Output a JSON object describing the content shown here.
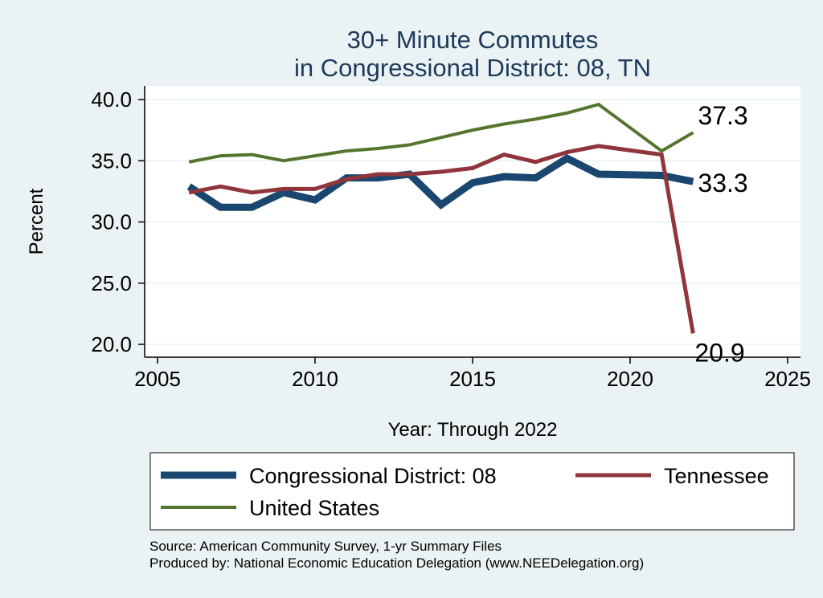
{
  "chart_data": {
    "type": "line",
    "title": [
      "30+ Minute Commutes",
      "in Congressional District:  08, TN"
    ],
    "xlabel": "Year: Through 2022",
    "ylabel": "Percent",
    "xlim": [
      2005,
      2025
    ],
    "ylim": [
      20,
      40
    ],
    "x_ticks": [
      2005,
      2010,
      2015,
      2020,
      2025
    ],
    "y_ticks": [
      "20.0",
      "25.0",
      "30.0",
      "35.0",
      "40.0"
    ],
    "grid": true,
    "legend_position": "bottom",
    "series": [
      {
        "name": "Congressional District:  08",
        "color": "#1a476f",
        "x": [
          2006,
          2007,
          2008,
          2009,
          2010,
          2011,
          2012,
          2013,
          2014,
          2015,
          2016,
          2017,
          2018,
          2019,
          2021,
          2022
        ],
        "values": [
          32.9,
          31.2,
          31.2,
          32.4,
          31.8,
          33.6,
          33.6,
          33.9,
          31.4,
          33.2,
          33.7,
          33.6,
          35.2,
          33.9,
          33.8,
          33.3
        ],
        "end_label": "33.3"
      },
      {
        "name": "Tennessee",
        "color": "#90353b",
        "x": [
          2006,
          2007,
          2008,
          2009,
          2010,
          2011,
          2012,
          2013,
          2014,
          2015,
          2016,
          2017,
          2018,
          2019,
          2021,
          2022
        ],
        "values": [
          32.4,
          32.9,
          32.4,
          32.7,
          32.7,
          33.5,
          33.9,
          33.9,
          34.1,
          34.4,
          35.5,
          34.9,
          35.7,
          36.2,
          35.5,
          20.9
        ],
        "end_label": "20.9"
      },
      {
        "name": "United States",
        "color": "#55752f",
        "x": [
          2006,
          2007,
          2008,
          2009,
          2010,
          2011,
          2012,
          2013,
          2014,
          2015,
          2016,
          2017,
          2018,
          2019,
          2021,
          2022
        ],
        "values": [
          34.9,
          35.4,
          35.5,
          35.0,
          35.4,
          35.8,
          36.0,
          36.3,
          36.9,
          37.5,
          38.0,
          38.4,
          38.9,
          39.6,
          35.8,
          37.3
        ],
        "end_label": "37.3"
      }
    ],
    "legend": [
      {
        "name": "Congressional District:  08",
        "color": "#1a476f"
      },
      {
        "name": "Tennessee",
        "color": "#90353b"
      },
      {
        "name": "United States",
        "color": "#55752f"
      }
    ],
    "source_lines": [
      "Source: American Community Survey, 1-yr Summary Files",
      "Produced by: National Economic Education Delegation (www.NEEDelegation.org)"
    ]
  }
}
